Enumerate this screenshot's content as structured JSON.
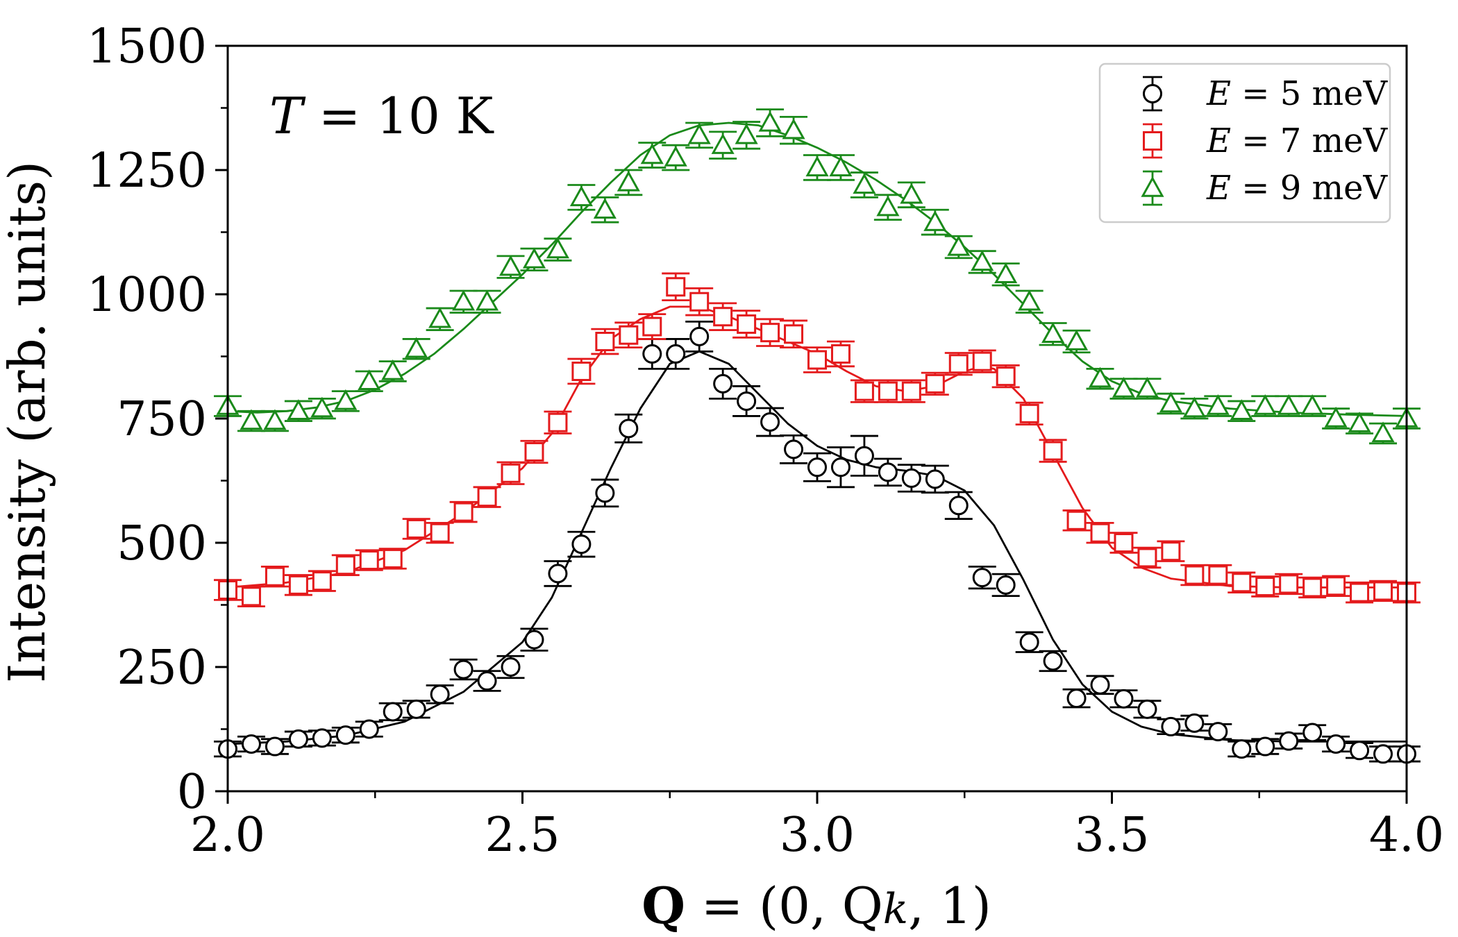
{
  "chart_data": {
    "type": "scatter",
    "xlabel_bold": "Q",
    "xlabel_rest": " = (0, Q",
    "xlabel_sub": "k",
    "xlabel_end": ", 1)",
    "ylabel": "Intensity (arb. units)",
    "annotation_var": "T",
    "annotation_text": " = 10 K",
    "xlim": [
      2.0,
      4.0
    ],
    "ylim": [
      0,
      1500
    ],
    "xticks": [
      2.0,
      2.5,
      3.0,
      3.5,
      4.0
    ],
    "xtick_labels": [
      "2.0",
      "2.5",
      "3.0",
      "3.5",
      "4.0"
    ],
    "yticks": [
      0,
      250,
      500,
      750,
      1000,
      1250,
      1500
    ],
    "ytick_labels": [
      "0",
      "250",
      "500",
      "750",
      "1000",
      "1250",
      "1500"
    ],
    "x_minor_step": 0.25,
    "y_minor_step": 125,
    "legend_position": "top-right",
    "x": [
      2.0,
      2.04,
      2.08,
      2.12,
      2.16,
      2.2,
      2.24,
      2.28,
      2.32,
      2.36,
      2.4,
      2.44,
      2.48,
      2.52,
      2.56,
      2.6,
      2.64,
      2.68,
      2.72,
      2.76,
      2.8,
      2.84,
      2.88,
      2.92,
      2.96,
      3.0,
      3.04,
      3.08,
      3.12,
      3.16,
      3.2,
      3.24,
      3.28,
      3.32,
      3.36,
      3.4,
      3.44,
      3.48,
      3.52,
      3.56,
      3.6,
      3.64,
      3.68,
      3.72,
      3.76,
      3.8,
      3.84,
      3.88,
      3.92,
      3.96,
      4.0
    ],
    "series": [
      {
        "name_var": "E",
        "name_text": " = 5 meV",
        "color": "#000000",
        "marker": "circle",
        "values": [
          85,
          95,
          90,
          105,
          107,
          113,
          125,
          160,
          165,
          195,
          245,
          222,
          250,
          305,
          438,
          497,
          600,
          730,
          880,
          880,
          915,
          820,
          785,
          743,
          688,
          652,
          652,
          675,
          642,
          630,
          628,
          575,
          430,
          415,
          300,
          262,
          187,
          214,
          186,
          165,
          130,
          137,
          120,
          85,
          90,
          101,
          118,
          95,
          82,
          75,
          75
        ],
        "errors": [
          15,
          15,
          15,
          15,
          15,
          15,
          15,
          17,
          17,
          18,
          20,
          20,
          22,
          22,
          25,
          25,
          27,
          28,
          30,
          30,
          30,
          30,
          30,
          28,
          28,
          28,
          40,
          40,
          27,
          27,
          27,
          27,
          22,
          22,
          20,
          20,
          18,
          18,
          17,
          17,
          15,
          15,
          15,
          15,
          15,
          15,
          15,
          15,
          15,
          15,
          15
        ],
        "fit": [
          [
            2.0,
            95
          ],
          [
            2.1,
            100
          ],
          [
            2.2,
            112
          ],
          [
            2.3,
            140
          ],
          [
            2.4,
            200
          ],
          [
            2.5,
            300
          ],
          [
            2.55,
            390
          ],
          [
            2.6,
            520
          ],
          [
            2.65,
            650
          ],
          [
            2.7,
            770
          ],
          [
            2.75,
            860
          ],
          [
            2.8,
            885
          ],
          [
            2.85,
            860
          ],
          [
            2.9,
            800
          ],
          [
            2.95,
            740
          ],
          [
            3.0,
            695
          ],
          [
            3.05,
            667
          ],
          [
            3.1,
            652
          ],
          [
            3.15,
            645
          ],
          [
            3.2,
            635
          ],
          [
            3.25,
            605
          ],
          [
            3.3,
            535
          ],
          [
            3.35,
            425
          ],
          [
            3.4,
            305
          ],
          [
            3.45,
            215
          ],
          [
            3.5,
            160
          ],
          [
            3.55,
            130
          ],
          [
            3.6,
            115
          ],
          [
            3.7,
            103
          ],
          [
            3.8,
            100
          ],
          [
            3.9,
            100
          ],
          [
            4.0,
            100
          ]
        ]
      },
      {
        "name_var": "E",
        "name_text": " = 7 meV",
        "color": "#e41a1c",
        "marker": "square",
        "values": [
          405,
          392,
          432,
          415,
          423,
          455,
          465,
          468,
          528,
          520,
          562,
          592,
          640,
          683,
          742,
          845,
          905,
          918,
          935,
          1015,
          985,
          955,
          940,
          923,
          920,
          868,
          880,
          805,
          805,
          805,
          820,
          860,
          865,
          835,
          760,
          685,
          545,
          520,
          500,
          470,
          483,
          435,
          435,
          420,
          412,
          417,
          410,
          413,
          400,
          403,
          400
        ],
        "errors": [
          20,
          20,
          20,
          20,
          20,
          20,
          20,
          20,
          20,
          20,
          20,
          20,
          22,
          22,
          22,
          25,
          25,
          25,
          25,
          27,
          27,
          27,
          27,
          27,
          27,
          25,
          25,
          22,
          22,
          22,
          22,
          22,
          22,
          22,
          22,
          22,
          20,
          20,
          20,
          20,
          20,
          20,
          20,
          20,
          20,
          20,
          20,
          20,
          20,
          20,
          20
        ],
        "fit": [
          [
            2.0,
            410
          ],
          [
            2.1,
            420
          ],
          [
            2.2,
            440
          ],
          [
            2.3,
            485
          ],
          [
            2.4,
            560
          ],
          [
            2.5,
            650
          ],
          [
            2.55,
            720
          ],
          [
            2.6,
            830
          ],
          [
            2.65,
            910
          ],
          [
            2.7,
            950
          ],
          [
            2.75,
            975
          ],
          [
            2.8,
            975
          ],
          [
            2.85,
            955
          ],
          [
            2.9,
            930
          ],
          [
            2.95,
            905
          ],
          [
            3.0,
            880
          ],
          [
            3.05,
            845
          ],
          [
            3.1,
            815
          ],
          [
            3.15,
            805
          ],
          [
            3.2,
            815
          ],
          [
            3.25,
            845
          ],
          [
            3.28,
            855
          ],
          [
            3.3,
            850
          ],
          [
            3.35,
            790
          ],
          [
            3.4,
            680
          ],
          [
            3.45,
            570
          ],
          [
            3.5,
            490
          ],
          [
            3.55,
            450
          ],
          [
            3.6,
            428
          ],
          [
            3.7,
            413
          ],
          [
            3.8,
            410
          ],
          [
            3.9,
            410
          ],
          [
            4.0,
            410
          ]
        ]
      },
      {
        "name_var": "E",
        "name_text": " = 9 meV",
        "color": "#1a8a1a",
        "marker": "triangle",
        "values": [
          775,
          745,
          745,
          765,
          770,
          785,
          825,
          845,
          890,
          950,
          985,
          985,
          1055,
          1070,
          1090,
          1195,
          1170,
          1225,
          1280,
          1275,
          1320,
          1300,
          1320,
          1345,
          1330,
          1255,
          1255,
          1220,
          1175,
          1200,
          1145,
          1095,
          1065,
          1040,
          985,
          920,
          905,
          830,
          810,
          810,
          780,
          770,
          775,
          765,
          775,
          775,
          775,
          750,
          740,
          720,
          750
        ],
        "errors": [
          20,
          20,
          20,
          20,
          20,
          20,
          20,
          20,
          20,
          22,
          22,
          22,
          22,
          22,
          22,
          25,
          25,
          25,
          25,
          25,
          25,
          27,
          27,
          27,
          27,
          25,
          25,
          25,
          25,
          25,
          25,
          22,
          22,
          22,
          22,
          22,
          22,
          20,
          20,
          20,
          20,
          20,
          20,
          20,
          20,
          20,
          20,
          20,
          20,
          20,
          20
        ],
        "fit": [
          [
            2.0,
            765
          ],
          [
            2.05,
            762
          ],
          [
            2.1,
            765
          ],
          [
            2.15,
            772
          ],
          [
            2.2,
            785
          ],
          [
            2.25,
            808
          ],
          [
            2.3,
            840
          ],
          [
            2.35,
            880
          ],
          [
            2.4,
            930
          ],
          [
            2.45,
            985
          ],
          [
            2.5,
            1040
          ],
          [
            2.55,
            1100
          ],
          [
            2.6,
            1165
          ],
          [
            2.65,
            1225
          ],
          [
            2.7,
            1280
          ],
          [
            2.75,
            1320
          ],
          [
            2.8,
            1340
          ],
          [
            2.85,
            1345
          ],
          [
            2.9,
            1340
          ],
          [
            2.95,
            1320
          ],
          [
            3.0,
            1295
          ],
          [
            3.05,
            1265
          ],
          [
            3.1,
            1230
          ],
          [
            3.15,
            1190
          ],
          [
            3.2,
            1145
          ],
          [
            3.25,
            1095
          ],
          [
            3.3,
            1040
          ],
          [
            3.35,
            980
          ],
          [
            3.4,
            920
          ],
          [
            3.45,
            865
          ],
          [
            3.5,
            825
          ],
          [
            3.55,
            800
          ],
          [
            3.6,
            785
          ],
          [
            3.7,
            770
          ],
          [
            3.8,
            762
          ],
          [
            3.9,
            758
          ],
          [
            4.0,
            755
          ]
        ]
      }
    ]
  }
}
